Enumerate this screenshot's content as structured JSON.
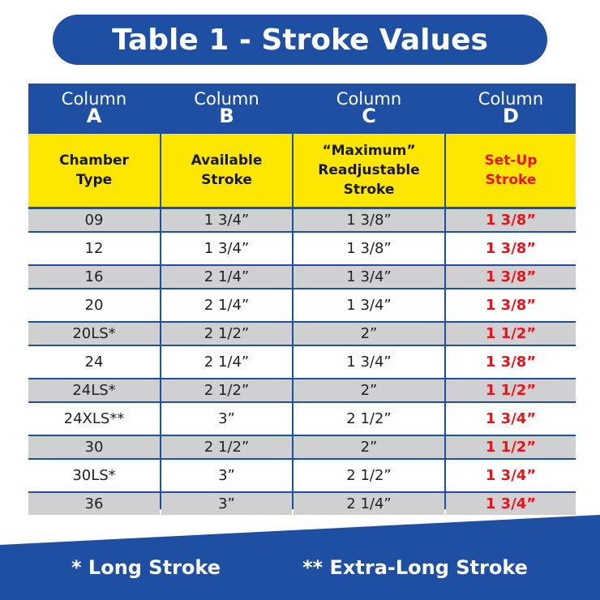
{
  "header": {
    "title": "Table 1 - Stroke Values"
  },
  "table": {
    "columns": [
      {
        "label": "Column",
        "letter": "A",
        "heading": [
          "Chamber",
          "Type"
        ]
      },
      {
        "label": "Column",
        "letter": "B",
        "heading": [
          "Available",
          "Stroke"
        ]
      },
      {
        "label": "Column",
        "letter": "C",
        "heading": [
          "“Maximum”",
          "Readjustable",
          "Stroke"
        ]
      },
      {
        "label": "Column",
        "letter": "D",
        "heading": [
          "Set-Up",
          "Stroke"
        ]
      }
    ],
    "rows": [
      [
        "09",
        "1 3/4”",
        "1 3/8”",
        "1 3/8”"
      ],
      [
        "12",
        "1 3/4”",
        "1 3/8”",
        "1 3/8”"
      ],
      [
        "16",
        "2 1/4”",
        "1 3/4”",
        "1 3/8”"
      ],
      [
        "20",
        "2 1/4”",
        "1 3/4”",
        "1 3/8”"
      ],
      [
        "20LS*",
        "2 1/2”",
        "2”",
        "1 1/2”"
      ],
      [
        "24",
        "2 1/4”",
        "1 3/4”",
        "1 3/8”"
      ],
      [
        "24LS*",
        "2 1/2”",
        "2”",
        "1 1/2”"
      ],
      [
        "24XLS**",
        "3”",
        "2 1/2”",
        "1 3/4”"
      ],
      [
        "30",
        "2 1/2”",
        "2”",
        "1 1/2”"
      ],
      [
        "30LS*",
        "3”",
        "2 1/2”",
        "1 3/4”"
      ],
      [
        "36",
        "3”",
        "2 1/4”",
        "1 3/4”"
      ]
    ]
  },
  "footnotes": [
    "* Long Stroke",
    "** Extra-Long Stroke"
  ]
}
